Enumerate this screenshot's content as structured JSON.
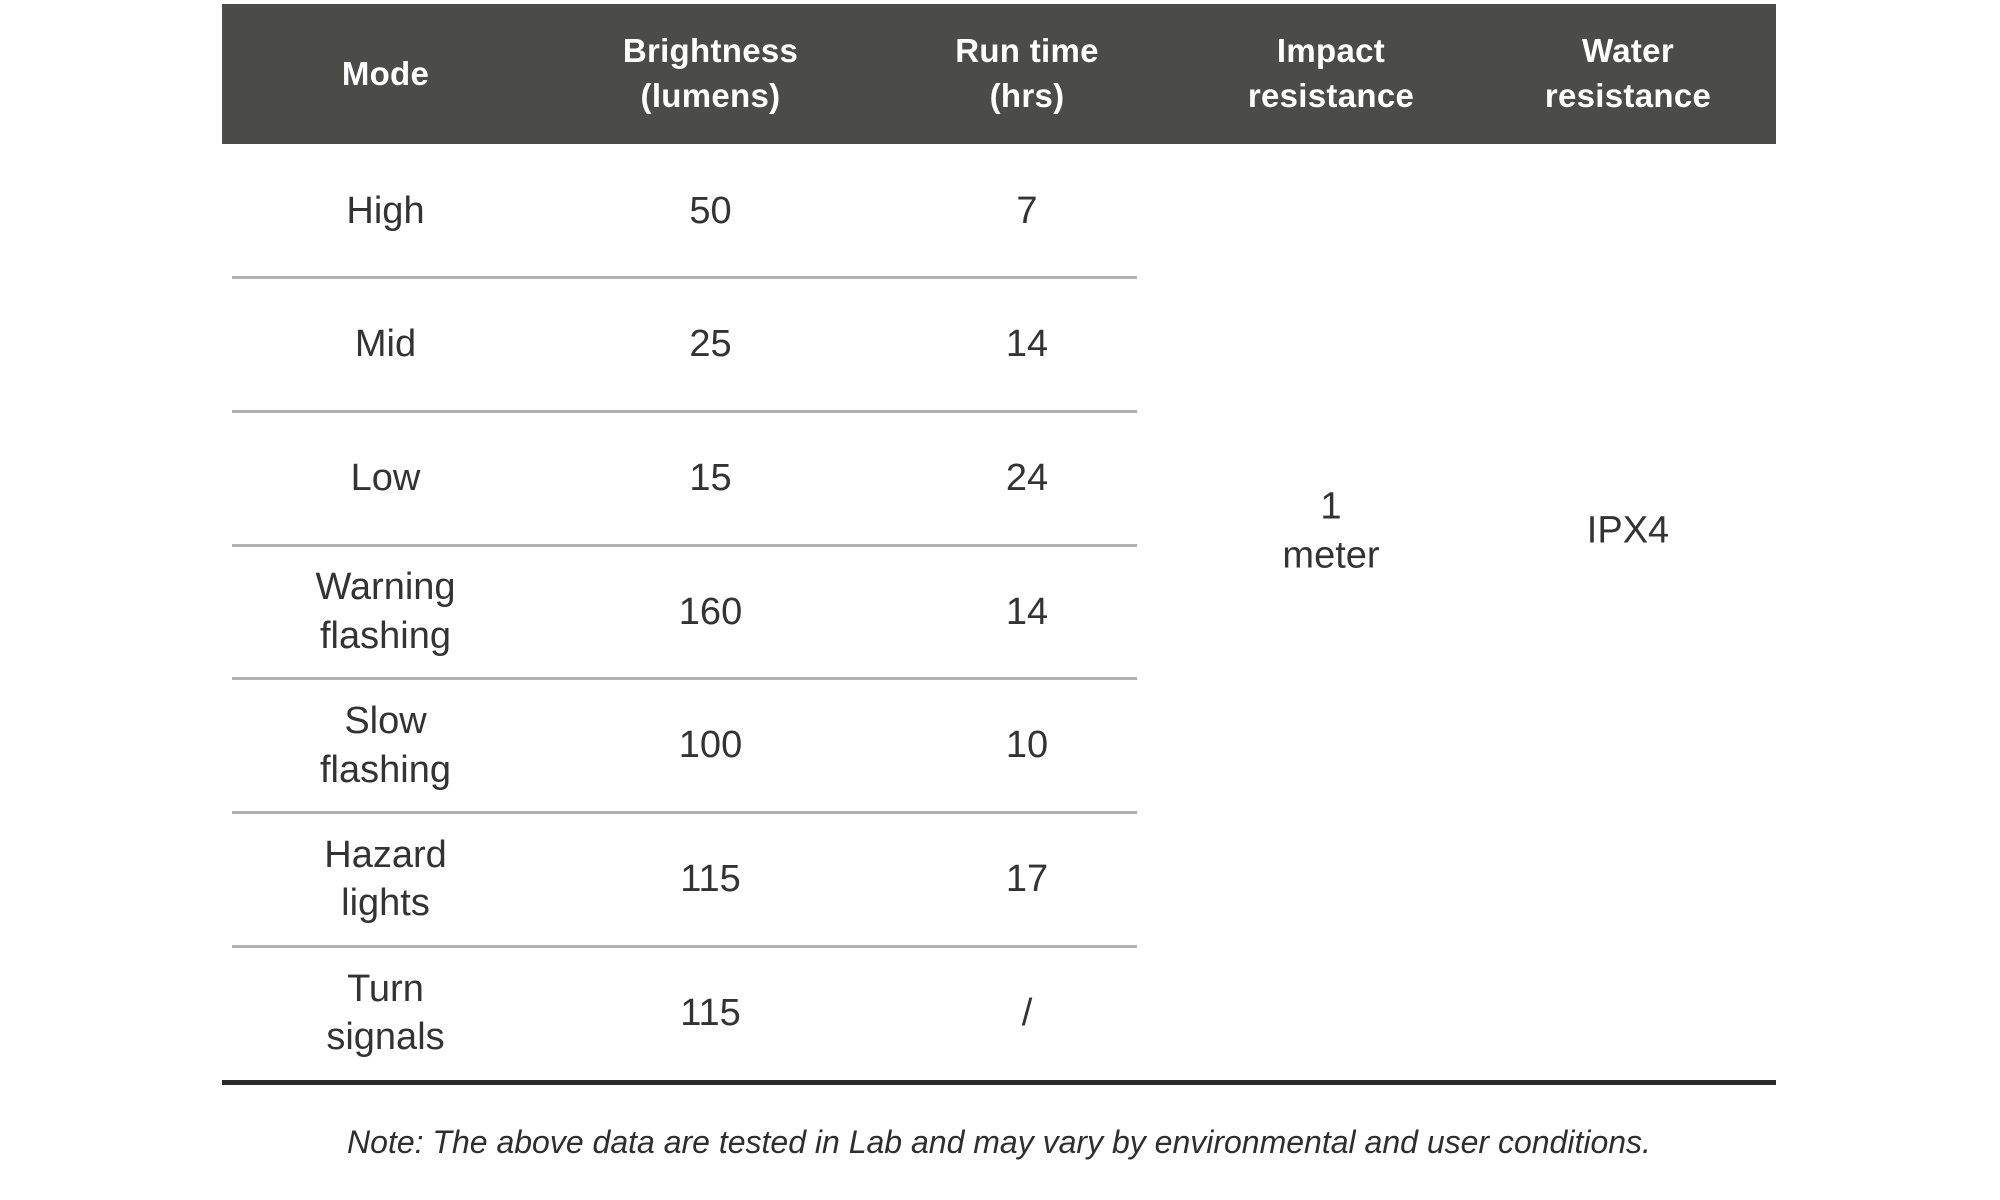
{
  "table": {
    "columns": [
      "Mode",
      "Brightness\n(lumens)",
      "Run time\n(hrs)",
      "Impact\nresistance",
      "Water\nresistance"
    ],
    "rows": [
      {
        "mode": "High",
        "brightness": "50",
        "run_time": "7"
      },
      {
        "mode": "Mid",
        "brightness": "25",
        "run_time": "14"
      },
      {
        "mode": "Low",
        "brightness": "15",
        "run_time": "24"
      },
      {
        "mode": "Warning\nflashing",
        "brightness": "160",
        "run_time": "14"
      },
      {
        "mode": "Slow\nflashing",
        "brightness": "100",
        "run_time": "10"
      },
      {
        "mode": "Hazard\nlights",
        "brightness": "115",
        "run_time": "17"
      },
      {
        "mode": "Turn\nsignals",
        "brightness": "115",
        "run_time": "/"
      }
    ],
    "merged": {
      "impact_resistance": "1\nmeter",
      "water_resistance": "IPX4"
    },
    "colors": {
      "header_bg": "#4b4b4a",
      "header_text": "#ffffff",
      "body_text": "#333333",
      "separator": "#b1b1b1",
      "bottom_rule": "#2b2b2b",
      "page_bg": "#ffffff"
    }
  },
  "note": "Note: The above data are tested in Lab and may vary by environmental and user conditions."
}
